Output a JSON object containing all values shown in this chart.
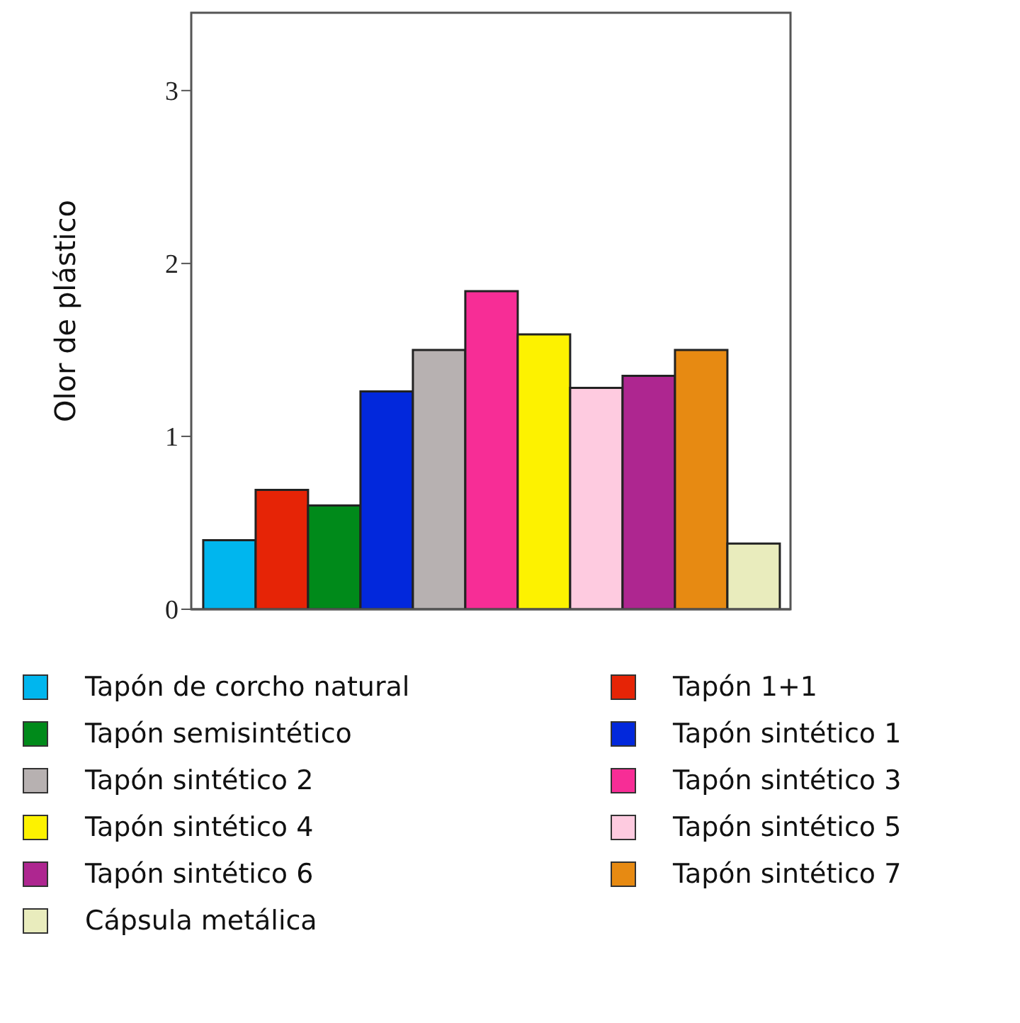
{
  "chart_data": {
    "type": "bar",
    "ylabel": "Olor de plástico",
    "categories": [
      null
    ],
    "ylim": [
      0,
      3.45
    ],
    "yticks": [
      0,
      1,
      2,
      3
    ],
    "grid": false,
    "legend": "bottom",
    "series": [
      {
        "name": "Tapón de corcho natural",
        "color": "#00b6ee",
        "values": [
          0.4
        ]
      },
      {
        "name": "Tapón 1+1",
        "color": "#e62406",
        "values": [
          0.69
        ]
      },
      {
        "name": "Tapón semisintético",
        "color": "#008a1a",
        "values": [
          0.6
        ]
      },
      {
        "name": "Tapón sintético 1",
        "color": "#0228dc",
        "values": [
          1.26
        ]
      },
      {
        "name": "Tapón sintético 2",
        "color": "#b7b1b1",
        "values": [
          1.5
        ]
      },
      {
        "name": "Tapón sintético 3",
        "color": "#f72d96",
        "values": [
          1.84
        ]
      },
      {
        "name": "Tapón sintético 4",
        "color": "#fdf200",
        "values": [
          1.59
        ]
      },
      {
        "name": "Tapón sintético 5",
        "color": "#fecbe0",
        "values": [
          1.28
        ]
      },
      {
        "name": "Tapón sintético 6",
        "color": "#ae2690",
        "values": [
          1.35
        ]
      },
      {
        "name": "Tapón sintético 7",
        "color": "#e78a12",
        "values": [
          1.5
        ]
      },
      {
        "name": "Cápsula metálica",
        "color": "#e9ecbd",
        "values": [
          0.38
        ]
      }
    ]
  }
}
